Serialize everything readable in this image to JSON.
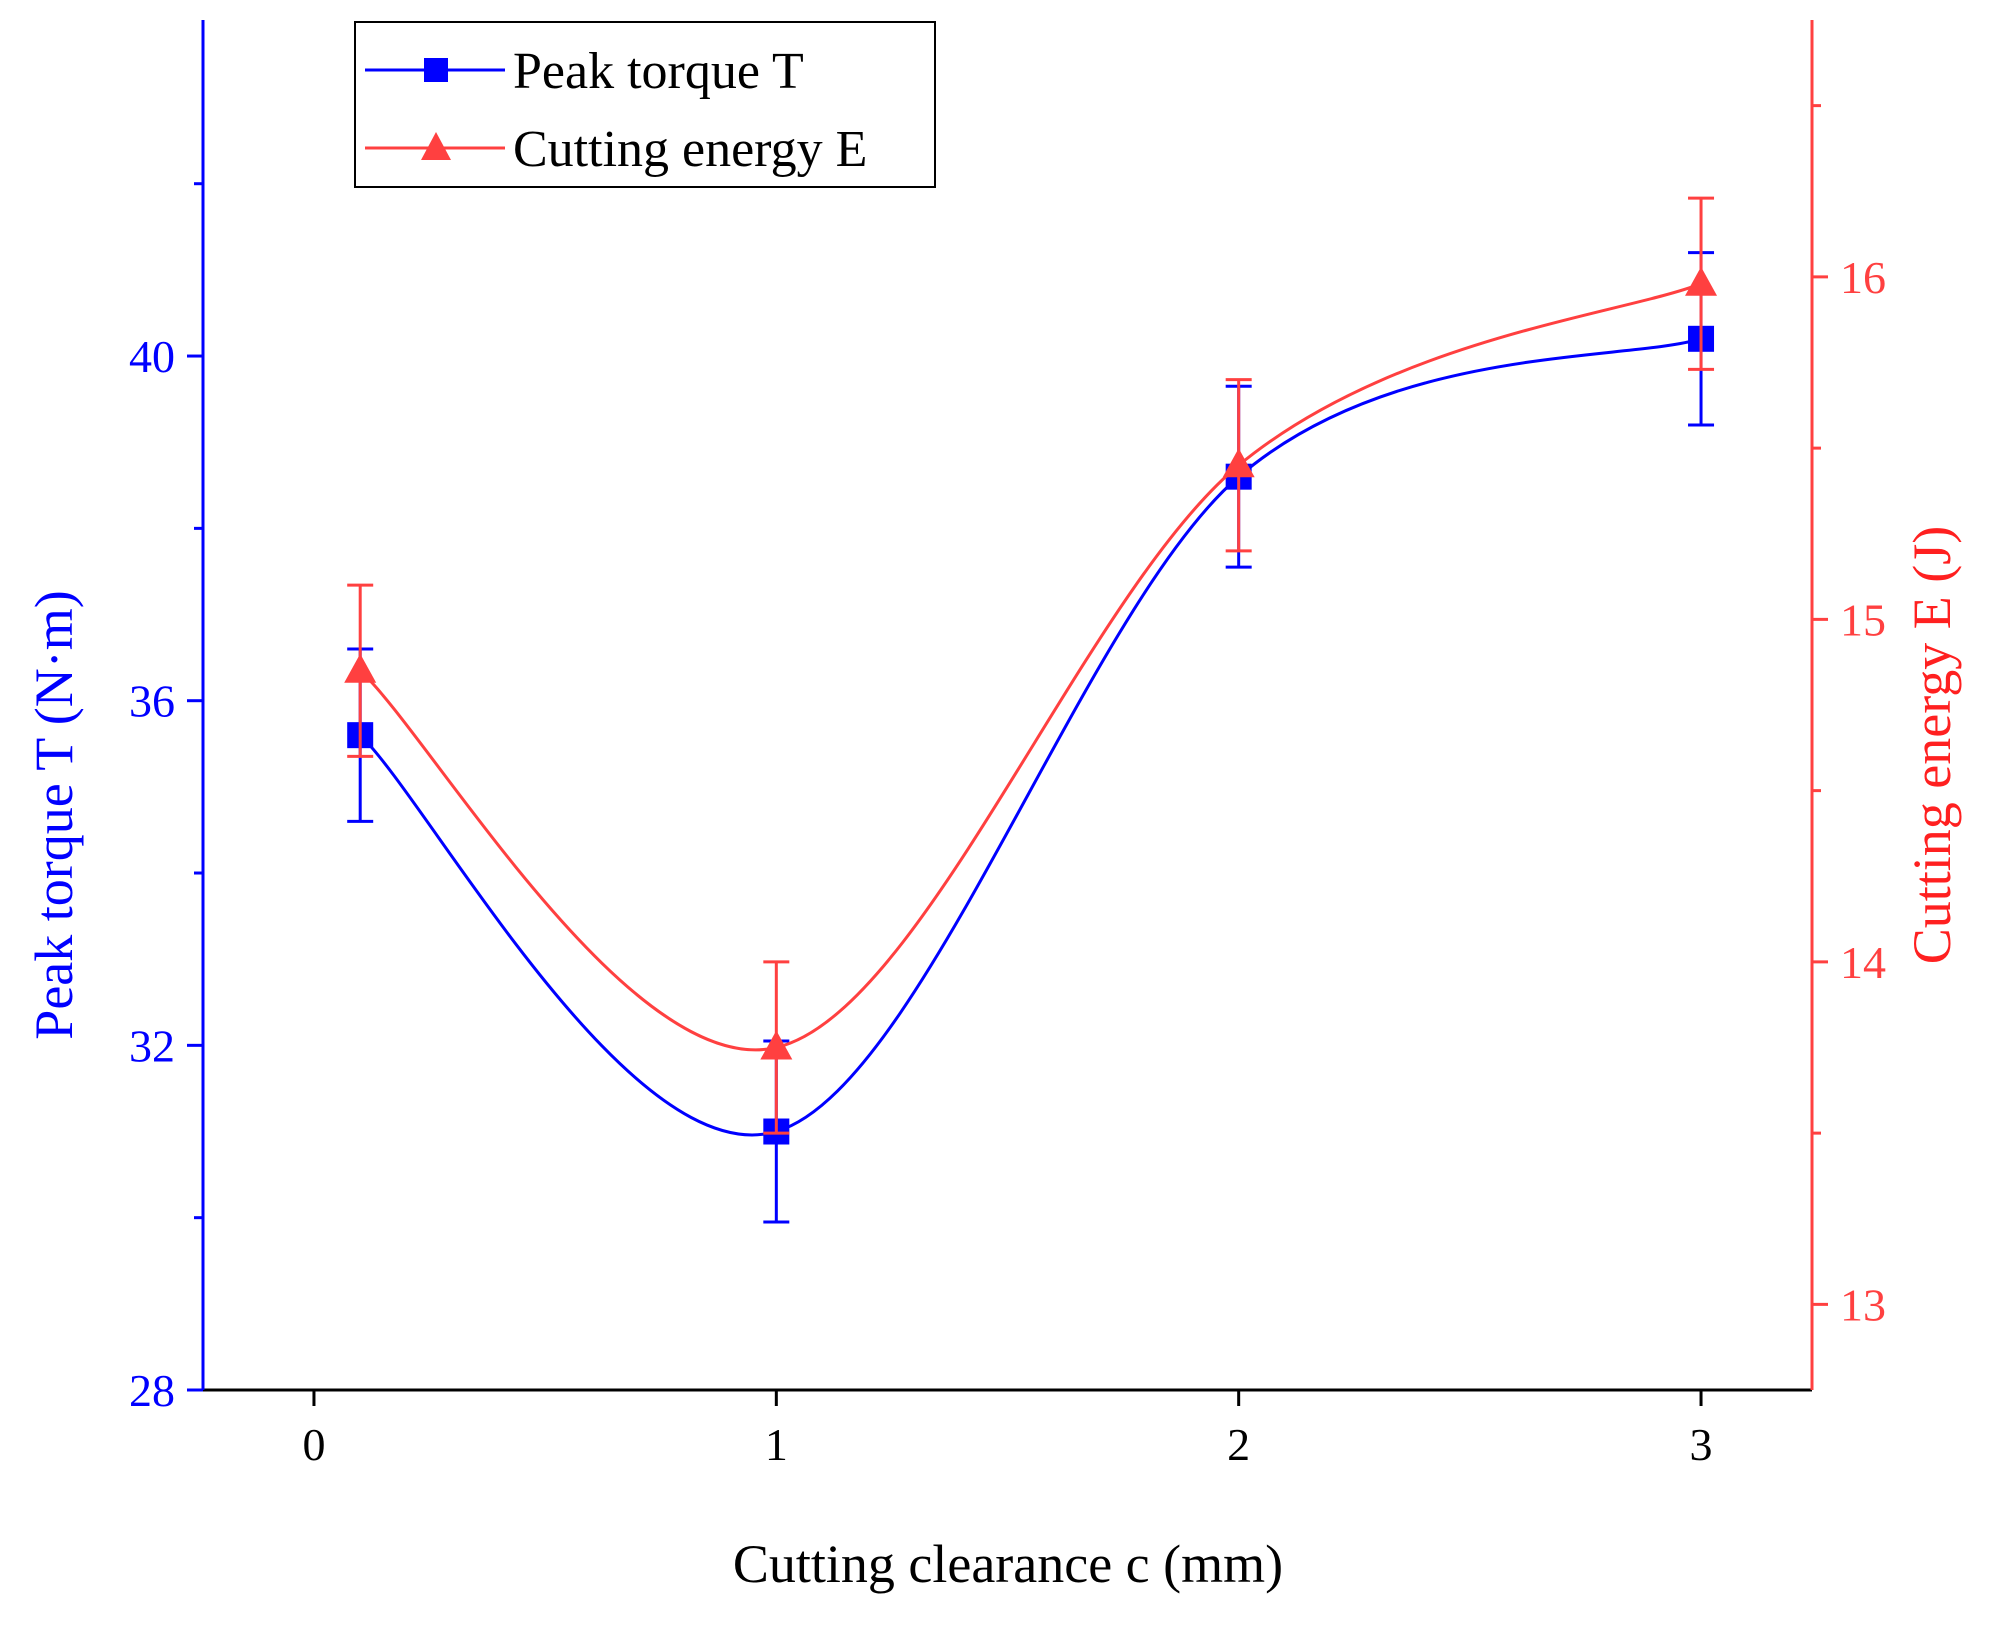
{
  "chart_data": {
    "type": "line",
    "xlabel": "Cutting clearance c (mm)",
    "ylabel_left": "Peak torque T (N·m)",
    "ylabel_right": "Cutting energy E (J)",
    "x_ticks": [
      "0",
      "1",
      "2",
      "3"
    ],
    "y_left_ticks": [
      "28",
      "32",
      "36",
      "40"
    ],
    "y_right_ticks": [
      "13",
      "14",
      "15",
      "16"
    ],
    "xlim": [
      -0.24,
      3.24
    ],
    "ylim_left": [
      28,
      43.9
    ],
    "ylim_right": [
      12.75,
      16.75
    ],
    "grid": false,
    "legend": "top-left",
    "series": [
      {
        "name": "Peak torque T",
        "axis": "left",
        "color": "#0000ff",
        "marker": "square",
        "x": [
          0.1,
          1,
          2,
          3
        ],
        "y": [
          35.6,
          31.0,
          38.6,
          40.2
        ],
        "error": [
          1.0,
          1.05,
          1.05,
          1.0
        ]
      },
      {
        "name": "Cutting energy E",
        "axis": "right",
        "color": "#ff4040",
        "marker": "triangle",
        "x": [
          0.1,
          1,
          2,
          3
        ],
        "y": [
          14.85,
          13.75,
          15.45,
          15.98
        ],
        "error": [
          0.25,
          0.25,
          0.25,
          0.25
        ]
      }
    ]
  }
}
